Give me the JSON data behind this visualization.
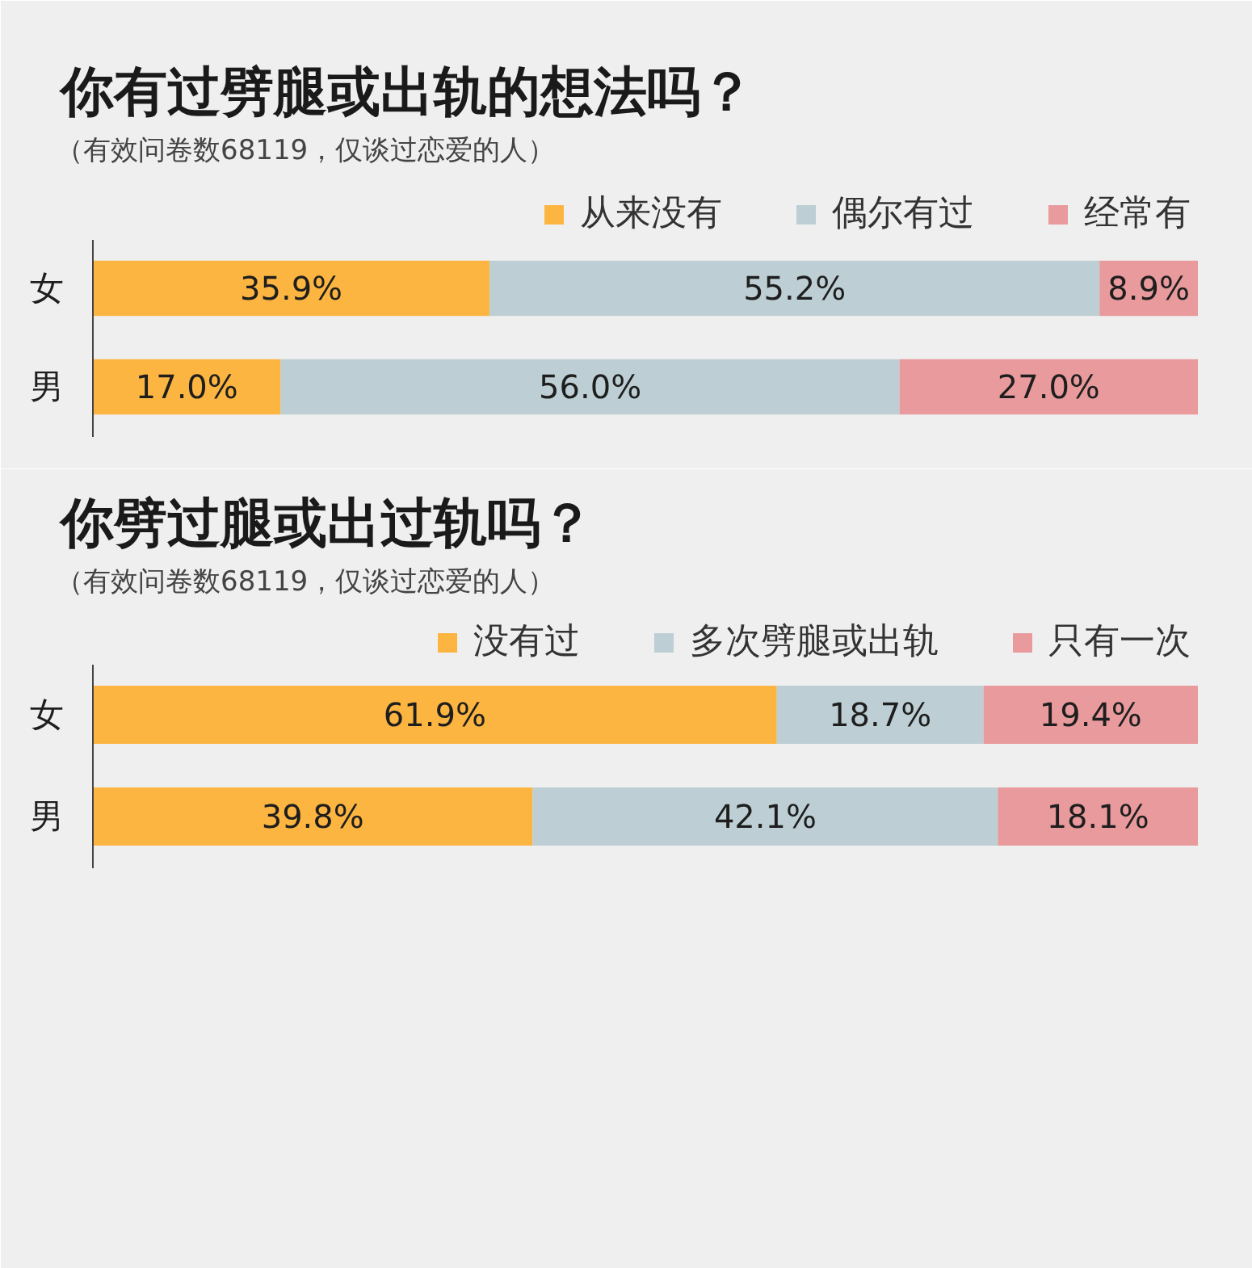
{
  "chart_data": [
    {
      "type": "bar",
      "orientation": "horizontal",
      "stacked": true,
      "title": "你有过劈腿或出轨的想法吗？",
      "subtitle": "（有效问卷数68119，仅谈过恋爱的人）",
      "categories": [
        "女",
        "男"
      ],
      "legend": "top right",
      "tick_labels": "y",
      "series": [
        {
          "name": "从来没有",
          "color": "#fdb541",
          "values": [
            35.9,
            17.0
          ],
          "value_labels": [
            "35.9%",
            "17.0%"
          ]
        },
        {
          "name": "偶尔有过",
          "color": "#bdcfd4",
          "values": [
            55.2,
            56.0
          ],
          "value_labels": [
            "55.2%",
            "56.0%"
          ]
        },
        {
          "name": "经常有",
          "color": "#e89a9c",
          "values": [
            8.9,
            27.0
          ],
          "value_labels": [
            "8.9%",
            "27.0%"
          ]
        }
      ]
    },
    {
      "type": "bar",
      "orientation": "horizontal",
      "stacked": true,
      "title": "你劈过腿或出过轨吗？",
      "subtitle": "（有效问卷数68119，仅谈过恋爱的人）",
      "categories": [
        "女",
        "男"
      ],
      "legend": "top right",
      "tick_labels": "y",
      "series": [
        {
          "name": "没有过",
          "color": "#fdb541",
          "values": [
            61.9,
            39.8
          ],
          "value_labels": [
            "61.9%",
            "39.8%"
          ]
        },
        {
          "name": "多次劈腿或出轨",
          "color": "#bdcfd4",
          "values": [
            18.7,
            42.1
          ],
          "value_labels": [
            "18.7%",
            "42.1%"
          ]
        },
        {
          "name": "只有一次",
          "color": "#e89a9c",
          "values": [
            19.4,
            18.1
          ],
          "value_labels": [
            "19.4%",
            "18.1%"
          ]
        }
      ]
    }
  ]
}
